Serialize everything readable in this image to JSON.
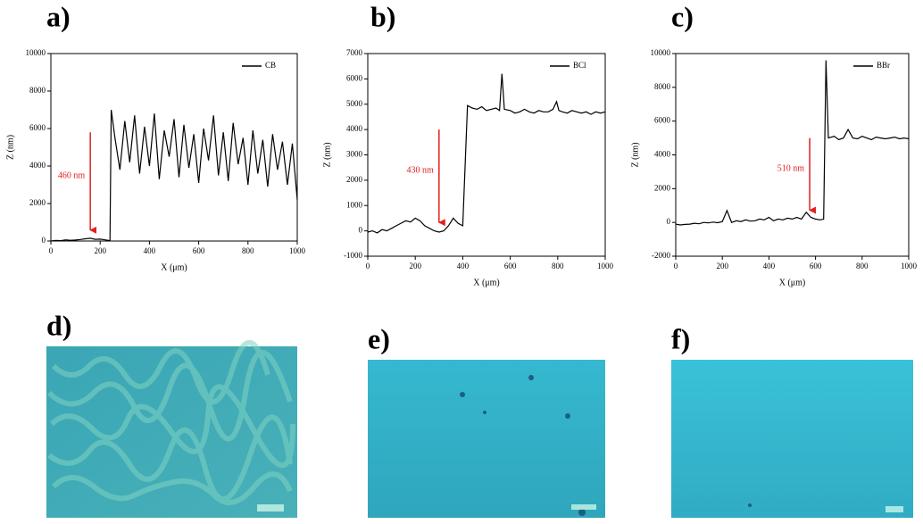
{
  "chart_data": [
    {
      "type": "line",
      "panel_label": "a)",
      "x_label": "X (μm)",
      "y_label": "Z (nm)",
      "legend": "upper right",
      "grid": false,
      "xlim": [
        0,
        1000
      ],
      "xticks": [
        0,
        200,
        400,
        600,
        800,
        1000
      ],
      "ylim": [
        0,
        10000
      ],
      "yticks": [
        0,
        2000,
        4000,
        6000,
        8000,
        10000
      ],
      "x": [
        0,
        20,
        40,
        60,
        80,
        100,
        120,
        140,
        160,
        180,
        200,
        220,
        240,
        245,
        260,
        280,
        300,
        320,
        340,
        360,
        380,
        400,
        420,
        440,
        460,
        480,
        500,
        520,
        540,
        560,
        580,
        600,
        620,
        640,
        660,
        680,
        700,
        720,
        740,
        760,
        780,
        800,
        820,
        840,
        860,
        880,
        900,
        920,
        940,
        960,
        980,
        1000
      ],
      "series": [
        {
          "name": "CB",
          "color": "#000000",
          "values": [
            0,
            30,
            20,
            60,
            40,
            50,
            80,
            120,
            150,
            90,
            100,
            60,
            20,
            7000,
            5500,
            3800,
            6400,
            4200,
            6700,
            3600,
            6100,
            4000,
            6800,
            3300,
            5900,
            4500,
            6500,
            3400,
            6200,
            3900,
            5700,
            3100,
            6000,
            4300,
            6700,
            3500,
            5800,
            3200,
            6300,
            4100,
            5500,
            3000,
            5900,
            3600,
            5400,
            2900,
            5700,
            3800,
            5300,
            3000,
            5200,
            2200
          ]
        }
      ],
      "annotation": {
        "text": "460 nm",
        "color": "#e02020",
        "x": 160,
        "y_from": 5800,
        "y_to": 200
      }
    },
    {
      "type": "line",
      "panel_label": "b)",
      "x_label": "X (μm)",
      "y_label": "Z (nm)",
      "legend": "upper right",
      "grid": false,
      "xlim": [
        0,
        1000
      ],
      "xticks": [
        0,
        200,
        400,
        600,
        800,
        1000
      ],
      "ylim": [
        -1000,
        7000
      ],
      "yticks": [
        -1000,
        0,
        1000,
        2000,
        3000,
        4000,
        5000,
        6000,
        7000
      ],
      "x": [
        0,
        20,
        40,
        60,
        80,
        100,
        120,
        140,
        160,
        180,
        200,
        220,
        240,
        260,
        280,
        300,
        320,
        340,
        360,
        380,
        400,
        420,
        440,
        460,
        480,
        500,
        520,
        540,
        555,
        565,
        575,
        600,
        620,
        640,
        660,
        680,
        700,
        720,
        740,
        760,
        780,
        795,
        805,
        820,
        840,
        860,
        880,
        900,
        920,
        940,
        960,
        980,
        1000
      ],
      "series": [
        {
          "name": "BCl",
          "color": "#000000",
          "values": [
            -50,
            0,
            -80,
            50,
            0,
            100,
            200,
            300,
            400,
            350,
            500,
            400,
            200,
            100,
            0,
            -50,
            0,
            200,
            500,
            300,
            200,
            4950,
            4850,
            4800,
            4900,
            4750,
            4800,
            4850,
            4750,
            6200,
            4800,
            4750,
            4650,
            4700,
            4800,
            4700,
            4650,
            4750,
            4700,
            4700,
            4800,
            5100,
            4750,
            4700,
            4650,
            4750,
            4700,
            4650,
            4700,
            4600,
            4700,
            4650,
            4700
          ]
        }
      ],
      "annotation": {
        "text": "430 nm",
        "color": "#e02020",
        "x": 300,
        "y_from": 4000,
        "y_to": 50
      }
    },
    {
      "type": "line",
      "panel_label": "c)",
      "x_label": "X (μm)",
      "y_label": "Z (nm)",
      "legend": "upper right",
      "grid": false,
      "xlim": [
        0,
        1000
      ],
      "xticks": [
        0,
        200,
        400,
        600,
        800,
        1000
      ],
      "ylim": [
        -2000,
        10000
      ],
      "yticks": [
        -2000,
        0,
        2000,
        4000,
        6000,
        8000,
        10000
      ],
      "x": [
        0,
        20,
        40,
        60,
        80,
        100,
        120,
        140,
        160,
        180,
        200,
        220,
        240,
        260,
        280,
        300,
        320,
        340,
        360,
        380,
        400,
        420,
        440,
        460,
        480,
        500,
        520,
        540,
        560,
        580,
        600,
        620,
        635,
        645,
        655,
        680,
        700,
        720,
        740,
        760,
        780,
        800,
        820,
        840,
        860,
        880,
        900,
        920,
        940,
        960,
        980,
        1000
      ],
      "series": [
        {
          "name": "BBr",
          "color": "#000000",
          "values": [
            -100,
            -150,
            -120,
            -100,
            -50,
            -80,
            0,
            -30,
            20,
            -20,
            50,
            700,
            0,
            100,
            50,
            150,
            80,
            100,
            200,
            150,
            300,
            100,
            200,
            150,
            250,
            200,
            300,
            200,
            600,
            300,
            200,
            150,
            200,
            9600,
            5000,
            5100,
            4900,
            5000,
            5500,
            5000,
            4950,
            5100,
            5000,
            4900,
            5050,
            5000,
            4950,
            5000,
            5050,
            4950,
            5000,
            4950
          ]
        }
      ],
      "annotation": {
        "text": "510 nm",
        "color": "#e02020",
        "x": 575,
        "y_from": 5000,
        "y_to": 300
      }
    }
  ],
  "images": [
    {
      "label": "d)"
    },
    {
      "label": "e)"
    },
    {
      "label": "f)"
    }
  ]
}
